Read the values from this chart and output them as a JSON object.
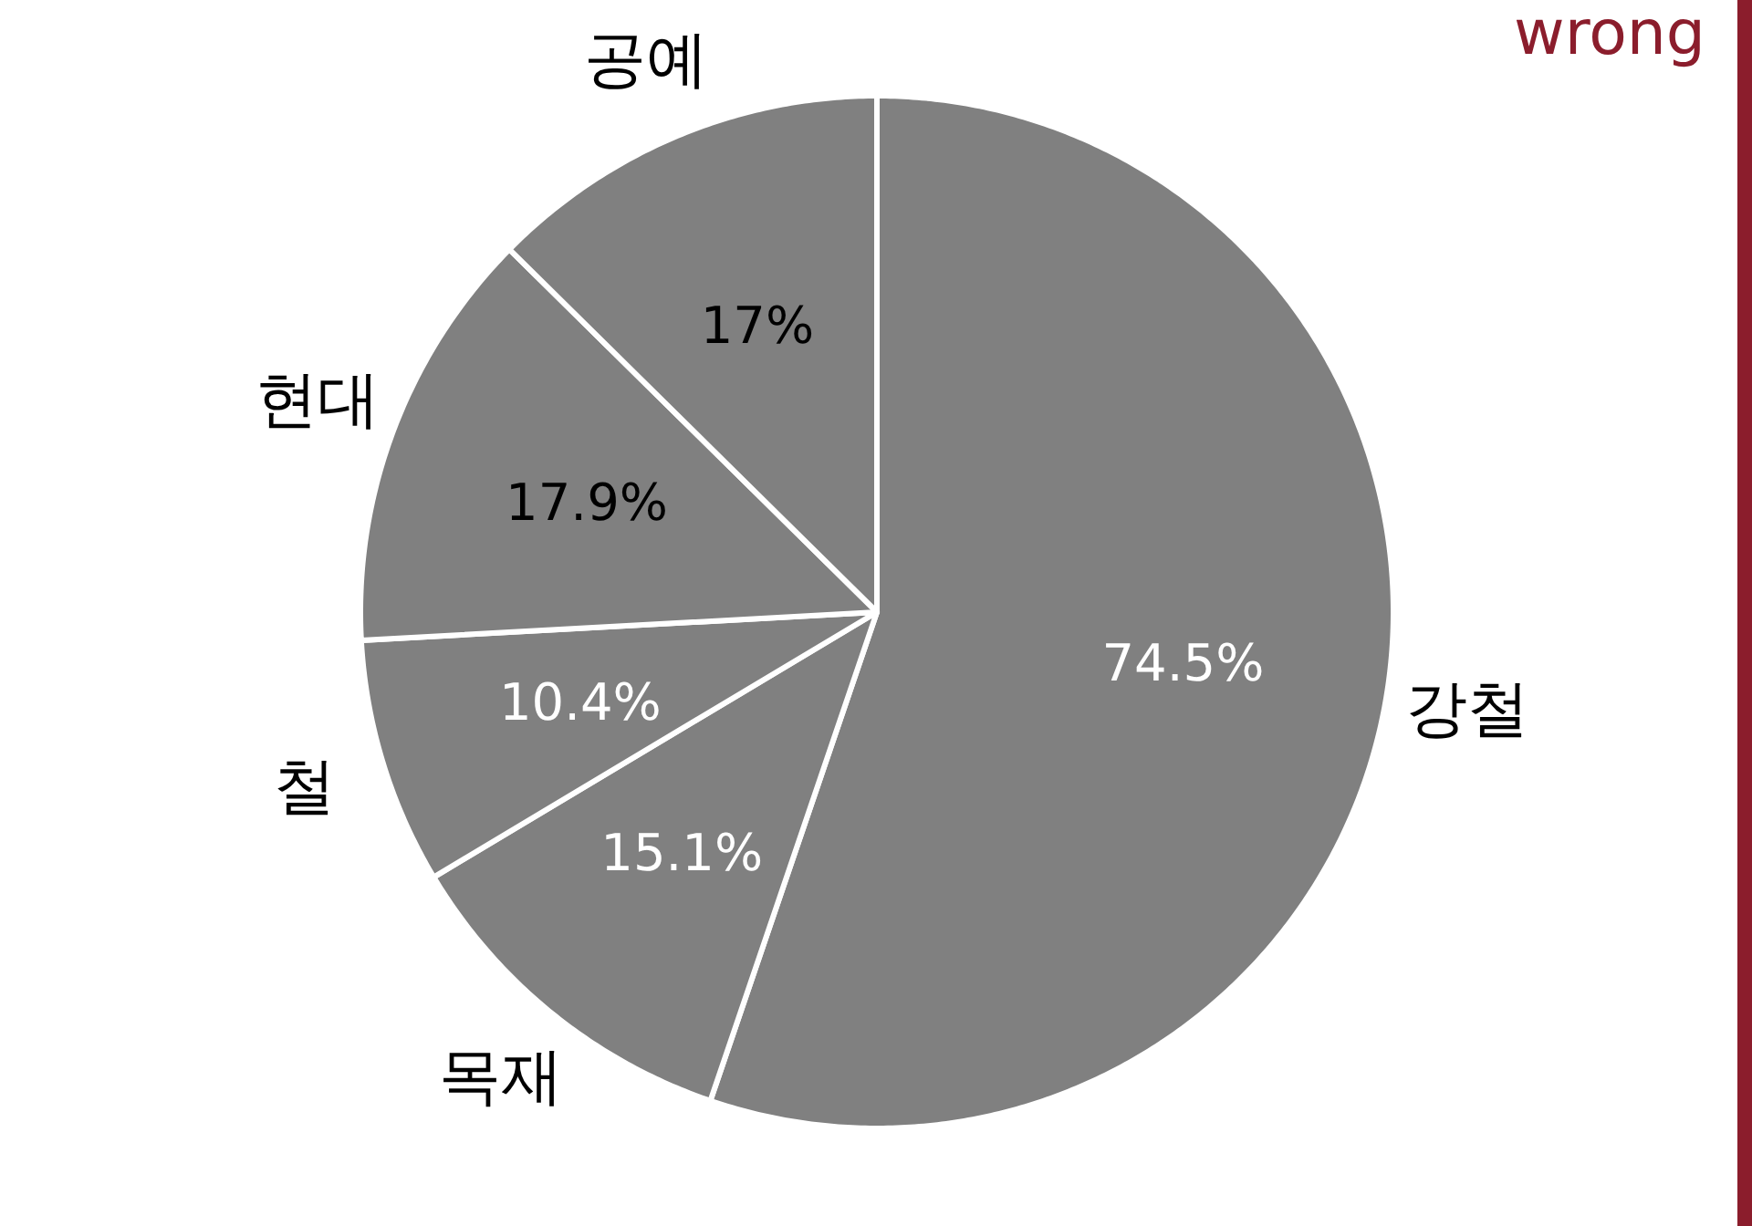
{
  "chart_data": {
    "type": "pie",
    "categories": [
      "강철",
      "목재",
      "철",
      "현대",
      "공예"
    ],
    "values": [
      74.5,
      15.1,
      10.4,
      17.9,
      17
    ],
    "colors": [
      "#808080",
      "#808080",
      "#808080",
      "#808080",
      "#808080"
    ],
    "value_labels": [
      "74.5%",
      "15.1%",
      "10.4%",
      "17.9%",
      "17%"
    ],
    "annotations": [
      "wrong"
    ]
  }
}
